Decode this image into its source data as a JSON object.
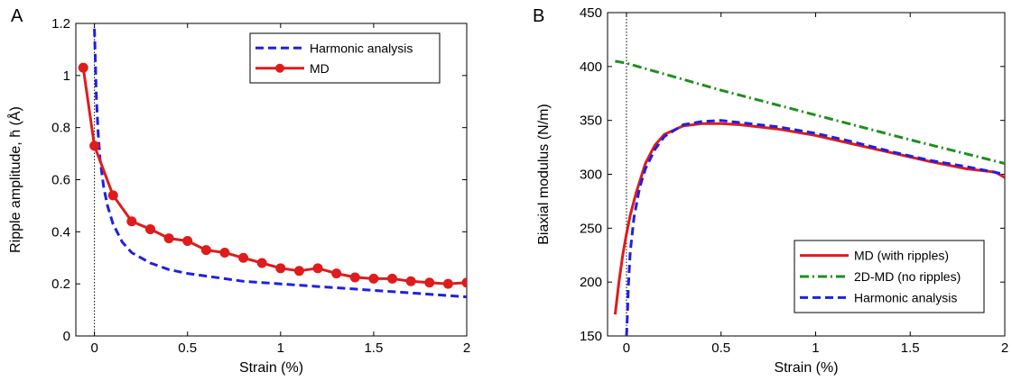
{
  "chart_data": [
    {
      "type": "line",
      "panel_label": "A",
      "xlabel": "Strain (%)",
      "ylabel": "Ripple amplitude, h̄ (Å)",
      "xlim": [
        -0.1,
        2
      ],
      "ylim": [
        0,
        1.2
      ],
      "xticks": [
        0,
        0.5,
        1,
        1.5,
        2
      ],
      "xtick_labels": [
        "0",
        "0.5",
        "1",
        "1.5",
        "2"
      ],
      "yticks": [
        0,
        0.2,
        0.4,
        0.6,
        0.8,
        1,
        1.2
      ],
      "ytick_labels": [
        "0",
        "0.2",
        "0.4",
        "0.6",
        "0.8",
        "1",
        "1.2"
      ],
      "grid": false,
      "legend_position": "top-right",
      "reference_line_x": 0,
      "series": [
        {
          "name": "Harmonic analysis",
          "style": "dashed",
          "color": "#1f1fe6",
          "x": [
            0.0,
            0.005,
            0.01,
            0.02,
            0.03,
            0.05,
            0.07,
            0.1,
            0.15,
            0.2,
            0.3,
            0.4,
            0.5,
            0.6,
            0.7,
            0.8,
            0.9,
            1.0,
            1.2,
            1.4,
            1.6,
            1.8,
            2.0
          ],
          "y": [
            1.18,
            1.05,
            0.92,
            0.78,
            0.68,
            0.57,
            0.5,
            0.43,
            0.36,
            0.32,
            0.28,
            0.255,
            0.24,
            0.23,
            0.22,
            0.21,
            0.205,
            0.2,
            0.19,
            0.18,
            0.17,
            0.16,
            0.15
          ]
        },
        {
          "name": "MD",
          "style": "solid-markers",
          "color": "#e01b1b",
          "x": [
            -0.06,
            0.0,
            0.1,
            0.2,
            0.3,
            0.4,
            0.5,
            0.6,
            0.7,
            0.8,
            0.9,
            1.0,
            1.1,
            1.2,
            1.3,
            1.4,
            1.5,
            1.6,
            1.7,
            1.8,
            1.9,
            2.0
          ],
          "y": [
            1.03,
            0.73,
            0.54,
            0.44,
            0.41,
            0.375,
            0.365,
            0.33,
            0.32,
            0.3,
            0.28,
            0.26,
            0.25,
            0.26,
            0.24,
            0.225,
            0.22,
            0.22,
            0.21,
            0.205,
            0.2,
            0.205
          ]
        }
      ]
    },
    {
      "type": "line",
      "panel_label": "B",
      "xlabel": "Strain (%)",
      "ylabel": "Biaxial modulus (N/m)",
      "xlim": [
        -0.1,
        2
      ],
      "ylim": [
        150,
        450
      ],
      "xticks": [
        0,
        0.5,
        1,
        1.5,
        2
      ],
      "xtick_labels": [
        "0",
        "0.5",
        "1",
        "1.5",
        "2"
      ],
      "yticks": [
        150,
        200,
        250,
        300,
        350,
        400,
        450
      ],
      "ytick_labels": [
        "150",
        "200",
        "250",
        "300",
        "350",
        "400",
        "450"
      ],
      "grid": false,
      "legend_position": "bottom-right",
      "reference_line_x": 0,
      "series": [
        {
          "name": "MD (with ripples)",
          "style": "solid",
          "color": "#e01b1b",
          "x": [
            -0.06,
            -0.04,
            -0.02,
            0.0,
            0.02,
            0.05,
            0.1,
            0.15,
            0.2,
            0.3,
            0.4,
            0.5,
            0.6,
            0.8,
            1.0,
            1.2,
            1.4,
            1.6,
            1.8,
            1.95,
            2.0
          ],
          "y": [
            170,
            200,
            225,
            245,
            262,
            282,
            310,
            327,
            337,
            345,
            347,
            347,
            346,
            342,
            336,
            328,
            320,
            312,
            305,
            302,
            297
          ]
        },
        {
          "name": "2D-MD (no ripples)",
          "style": "dashdot",
          "color": "#1e8f1e",
          "x": [
            -0.06,
            0.0,
            0.5,
            1.0,
            1.5,
            2.0
          ],
          "y": [
            405,
            403,
            378,
            355,
            332,
            310
          ]
        },
        {
          "name": "Harmonic analysis",
          "style": "dashed",
          "color": "#1f1fe6",
          "x": [
            0.0,
            0.005,
            0.01,
            0.02,
            0.04,
            0.07,
            0.1,
            0.15,
            0.2,
            0.3,
            0.4,
            0.5,
            0.6,
            0.8,
            1.0,
            1.2,
            1.4,
            1.6,
            1.8,
            2.0
          ],
          "y": [
            150,
            170,
            195,
            228,
            260,
            288,
            305,
            323,
            335,
            346,
            349,
            350,
            348,
            344,
            338,
            330,
            321,
            313,
            307,
            300
          ]
        }
      ]
    }
  ]
}
